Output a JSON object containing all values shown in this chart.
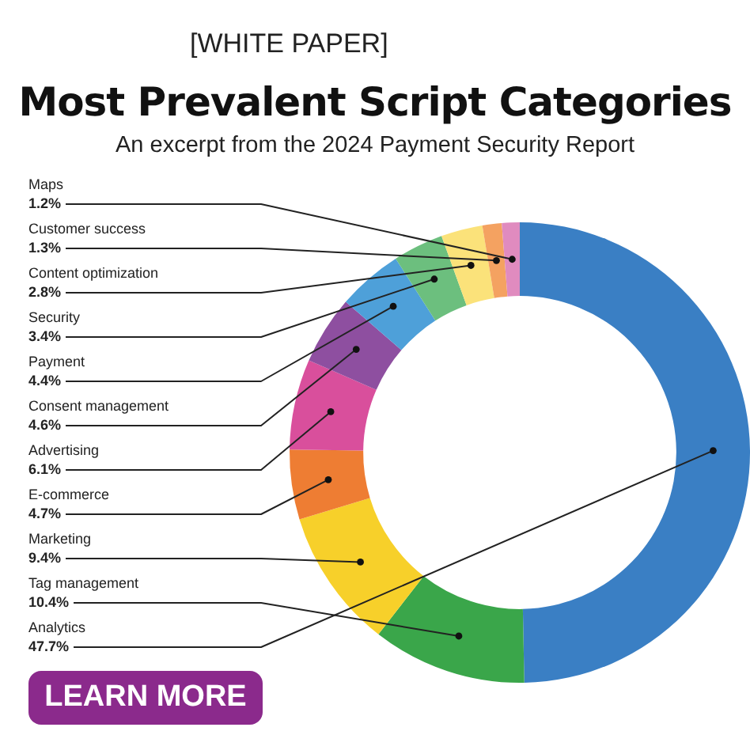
{
  "chart_data": {
    "type": "donut",
    "title": "Most Prevalent Script Categories",
    "subtitle": "An excerpt from the 2024 Payment Security Report",
    "categories": [
      "Analytics",
      "Tag management",
      "Marketing",
      "E-commerce",
      "Advertising",
      "Consent management",
      "Payment",
      "Security",
      "Content optimization",
      "Customer success",
      "Maps"
    ],
    "values": [
      47.7,
      10.4,
      9.4,
      4.7,
      6.1,
      4.6,
      4.4,
      3.4,
      2.8,
      1.3,
      1.2
    ],
    "value_labels": [
      "47.7%",
      "10.4%",
      "9.4%",
      "4.7%",
      "6.1%",
      "4.6%",
      "4.4%",
      "3.4%",
      "2.8%",
      "1.3%",
      "1.2%"
    ],
    "colors": [
      "#3a7fc4",
      "#3aa64a",
      "#f7d02a",
      "#ee7d33",
      "#d94f9c",
      "#8e4fa0",
      "#4ea0d9",
      "#6cbf7e",
      "#fbe27a",
      "#f4a261",
      "#e08bbf"
    ],
    "data_labels": true,
    "legend": false,
    "annotations": [
      "[WHITE PAPER]",
      "LEARN MORE"
    ]
  }
}
